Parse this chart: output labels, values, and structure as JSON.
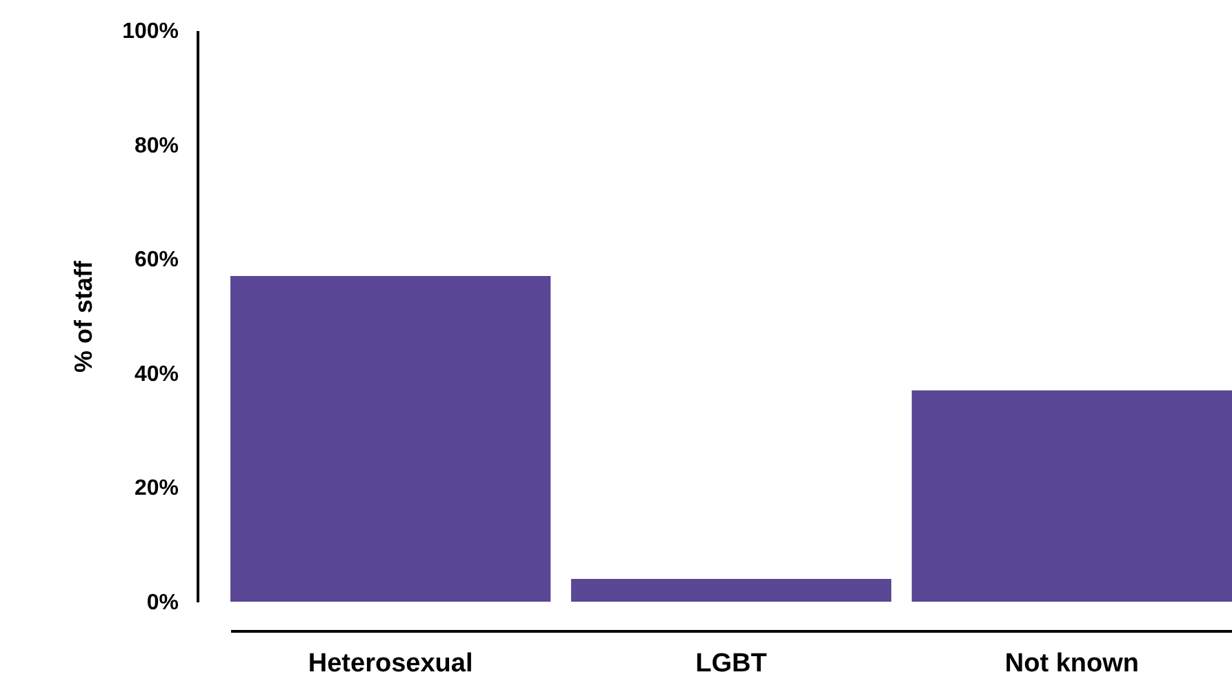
{
  "chart_data": {
    "type": "bar",
    "ylabel": "% of staff",
    "categories": [
      "Heterosexual",
      "LGBT",
      "Not known"
    ],
    "values": [
      57,
      4,
      37
    ],
    "color": "#5a4796",
    "ylim": [
      0,
      100
    ],
    "yticks": [
      {
        "value": 0,
        "label": "0%"
      },
      {
        "value": 20,
        "label": "20%"
      },
      {
        "value": 40,
        "label": "40%"
      },
      {
        "value": 60,
        "label": "60%"
      },
      {
        "value": 80,
        "label": "80%"
      },
      {
        "value": 100,
        "label": "100%"
      }
    ],
    "grid": false
  }
}
